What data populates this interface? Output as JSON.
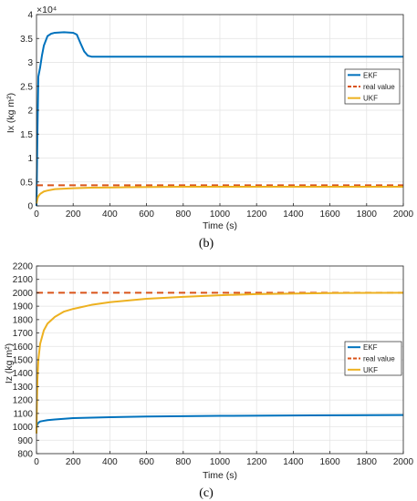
{
  "chart_data": [
    {
      "type": "line",
      "caption": "(b)",
      "xlabel": "Time (s)",
      "ylabel": "Ix (kg m²)",
      "exponent_label": "×10⁴",
      "xlim": [
        0,
        2000
      ],
      "ylim": [
        0,
        40000
      ],
      "xticks": [
        0,
        200,
        400,
        600,
        800,
        1000,
        1200,
        1400,
        1600,
        1800,
        2000
      ],
      "yticks": [
        0,
        5000,
        10000,
        15000,
        20000,
        25000,
        30000,
        35000,
        40000
      ],
      "ytick_labels": [
        "0",
        "0.5",
        "1",
        "1.5",
        "2",
        "2.5",
        "3",
        "3.5",
        "4"
      ],
      "grid": true,
      "legend_position": "right",
      "series": [
        {
          "name": "EKF",
          "color": "#0072BD",
          "style": "solid",
          "x": [
            0,
            5,
            10,
            20,
            30,
            40,
            60,
            80,
            100,
            150,
            200,
            220,
            240,
            260,
            280,
            300,
            350,
            400,
            600,
            1000,
            1500,
            2000
          ],
          "y": [
            0,
            15000,
            27000,
            29000,
            31500,
            33500,
            35500,
            36000,
            36200,
            36300,
            36200,
            35800,
            34000,
            32300,
            31400,
            31200,
            31200,
            31200,
            31200,
            31200,
            31200,
            31200
          ]
        },
        {
          "name": "real value",
          "color": "#D95319",
          "style": "dashed",
          "x": [
            0,
            2000
          ],
          "y": [
            4300,
            4300
          ]
        },
        {
          "name": "UKF",
          "color": "#EDB120",
          "style": "solid",
          "x": [
            0,
            5,
            10,
            20,
            40,
            60,
            100,
            150,
            200,
            300,
            500,
            800,
            1200,
            1600,
            2000
          ],
          "y": [
            500,
            1500,
            2000,
            2500,
            3000,
            3200,
            3500,
            3600,
            3700,
            3800,
            3900,
            4000,
            4000,
            4000,
            4000
          ]
        }
      ]
    },
    {
      "type": "line",
      "caption": "(c)",
      "xlabel": "Time (s)",
      "ylabel": "Iz (kg m²)",
      "xlim": [
        0,
        2000
      ],
      "ylim": [
        800,
        2200
      ],
      "xticks": [
        0,
        200,
        400,
        600,
        800,
        1000,
        1200,
        1400,
        1600,
        1800,
        2000
      ],
      "yticks": [
        800,
        900,
        1000,
        1100,
        1200,
        1300,
        1400,
        1500,
        1600,
        1700,
        1800,
        1900,
        2000,
        2100,
        2200
      ],
      "ytick_labels": [
        "800",
        "900",
        "1000",
        "1100",
        "1200",
        "1300",
        "1400",
        "1500",
        "1600",
        "1700",
        "1800",
        "1900",
        "2000",
        "2100",
        "2200"
      ],
      "grid": true,
      "legend_position": "right",
      "series": [
        {
          "name": "EKF",
          "color": "#0072BD",
          "style": "solid",
          "x": [
            0,
            5,
            10,
            20,
            40,
            60,
            100,
            200,
            400,
            600,
            1000,
            1500,
            2000
          ],
          "y": [
            990,
            1020,
            1030,
            1040,
            1045,
            1050,
            1055,
            1065,
            1072,
            1077,
            1082,
            1085,
            1088
          ]
        },
        {
          "name": "real value",
          "color": "#D95319",
          "style": "dashed",
          "x": [
            0,
            2000
          ],
          "y": [
            2000,
            2000
          ]
        },
        {
          "name": "UKF",
          "color": "#EDB120",
          "style": "solid",
          "x": [
            0,
            2,
            5,
            10,
            20,
            40,
            60,
            100,
            150,
            200,
            300,
            400,
            600,
            800,
            1000,
            1200,
            1600,
            2000
          ],
          "y": [
            950,
            1150,
            1350,
            1500,
            1620,
            1720,
            1770,
            1820,
            1860,
            1880,
            1910,
            1930,
            1955,
            1970,
            1982,
            1990,
            1998,
            2000
          ]
        }
      ]
    }
  ]
}
